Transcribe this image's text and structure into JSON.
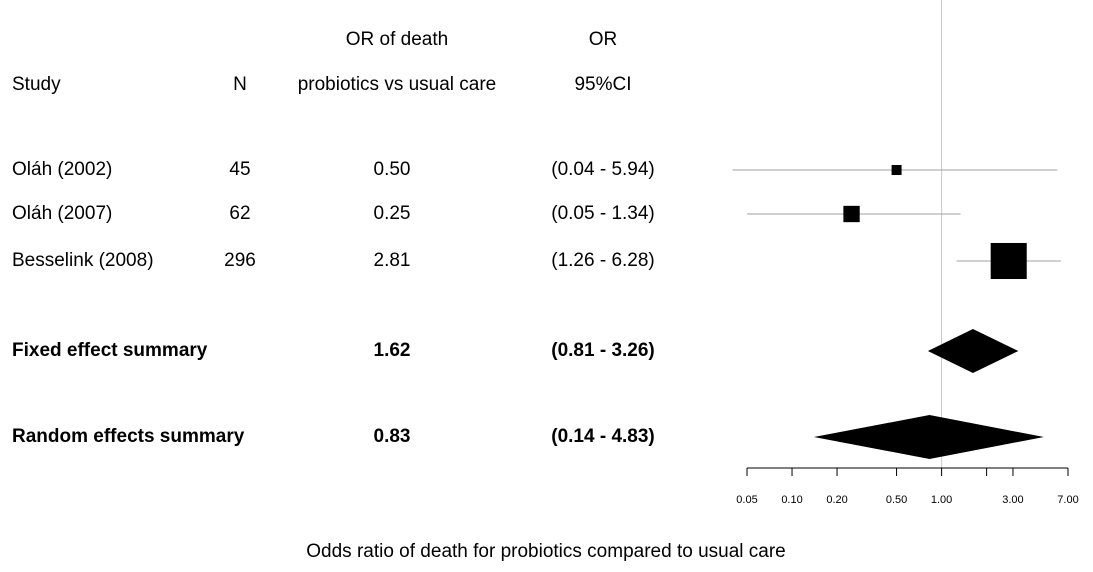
{
  "chart_data": {
    "type": "forest",
    "headers": {
      "study": "Study",
      "n": "N",
      "or": [
        "OR of death",
        "probiotics vs usual care"
      ],
      "ci": [
        "OR",
        "95%CI"
      ]
    },
    "categories": [
      "Oláh (2002)",
      "Oláh (2007)",
      "Besselink (2008)"
    ],
    "n": [
      45,
      62,
      296
    ],
    "values": [
      0.5,
      0.25,
      2.81
    ],
    "value_labels": [
      "0.50",
      "0.25",
      "2.81"
    ],
    "ci_lower": [
      0.04,
      0.05,
      1.26
    ],
    "ci_upper": [
      5.94,
      1.34,
      6.28
    ],
    "ci_labels": [
      "(0.04 - 5.94)",
      "(0.05 - 1.34)",
      "(1.26 - 6.28)"
    ],
    "weights": [
      6,
      16,
      78
    ],
    "color": "#000000",
    "summaries": [
      {
        "name": "Fixed effect summary",
        "value": 1.62,
        "ci_lower": 0.81,
        "ci_upper": 3.26,
        "ci_label": "(0.81 - 3.26)"
      },
      {
        "name": "Random effects summary",
        "value": 0.83,
        "ci_lower": 0.14,
        "ci_upper": 4.83,
        "ci_label": "(0.14 - 4.83)"
      }
    ],
    "xlabel": "Odds ratio of death for probiotics compared to usual care",
    "xscale": "log",
    "xlim": [
      0.05,
      7
    ],
    "xticks": [
      0.05,
      {
        "value": 0.1,
        "label": "0.10"
      },
      {
        "value": 0.2,
        "label": "0.20"
      },
      {
        "value": 0.5,
        "label": "0.50"
      },
      {
        "value": 1,
        "label": "1.00"
      },
      {
        "value": 2,
        "label": null
      },
      {
        "value": 3,
        "label": "3.00"
      },
      {
        "value": 7,
        "label": "7.00"
      }
    ],
    "reference_line": 1
  }
}
